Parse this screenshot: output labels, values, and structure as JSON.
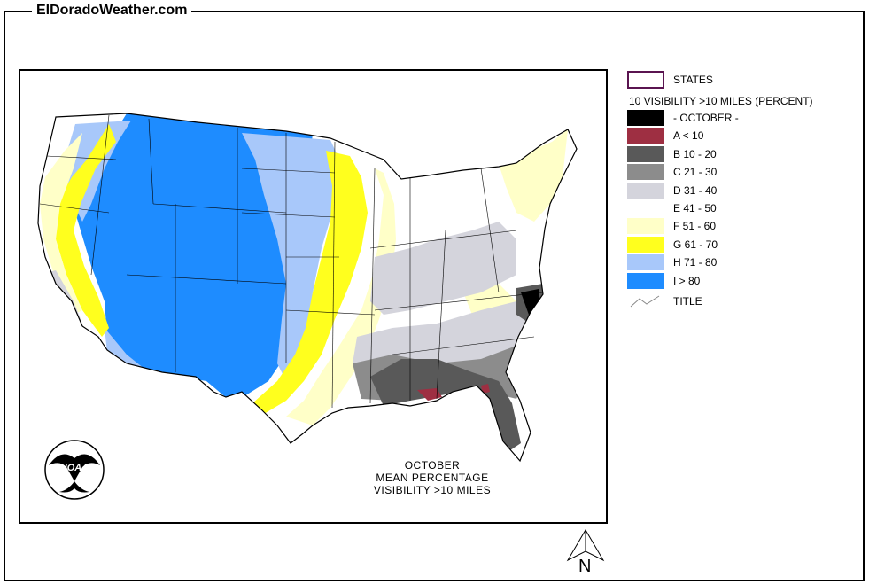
{
  "site": {
    "title": "ElDoradoWeather.com"
  },
  "map": {
    "caption": [
      "OCTOBER",
      "MEAN PERCENTAGE",
      "VISIBILITY >10 MILES"
    ],
    "logo_text": "NOAA",
    "north_label": "N"
  },
  "legend": {
    "states_label": "STATES",
    "header": "10 VISIBILITY >10 MILES (PERCENT)",
    "items": [
      {
        "label": "- OCTOBER -",
        "color": "#000000"
      },
      {
        "label": "A < 10",
        "color": "#9e2f42"
      },
      {
        "label": "B 10 - 20",
        "color": "#595959"
      },
      {
        "label": "C 21 - 30",
        "color": "#8c8c8c"
      },
      {
        "label": "D 31 - 40",
        "color": "#d4d4dc"
      },
      {
        "label": "E 41 - 50",
        "color": "#ffffff"
      },
      {
        "label": "F 51 - 60",
        "color": "#ffffc8"
      },
      {
        "label": "G 61 - 70",
        "color": "#ffff1e"
      },
      {
        "label": "H 71 - 80",
        "color": "#a8c8fa"
      },
      {
        "label": "I > 80",
        "color": "#1e8cff"
      }
    ],
    "title_label": "TITLE",
    "states_outline_color": "#5a1450"
  }
}
